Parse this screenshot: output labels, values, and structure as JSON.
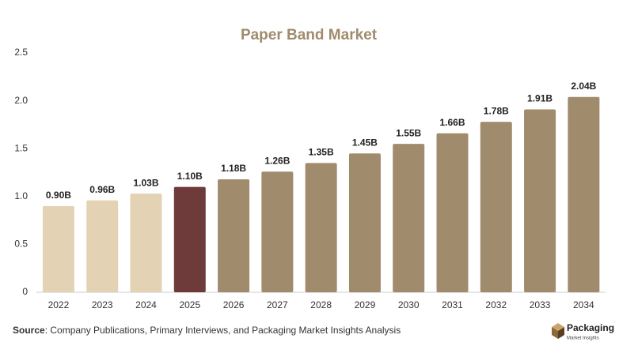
{
  "chart_data": {
    "type": "bar",
    "title": "Paper Band Market",
    "categories": [
      "2022",
      "2023",
      "2024",
      "2025",
      "2026",
      "2027",
      "2028",
      "2029",
      "2030",
      "2031",
      "2032",
      "2033",
      "2034"
    ],
    "values": [
      0.9,
      0.96,
      1.03,
      1.1,
      1.18,
      1.26,
      1.35,
      1.45,
      1.55,
      1.66,
      1.78,
      1.91,
      2.04
    ],
    "value_labels": [
      "0.90B",
      "0.96B",
      "1.03B",
      "1.10B",
      "1.18B",
      "1.26B",
      "1.35B",
      "1.45B",
      "1.55B",
      "1.66B",
      "1.78B",
      "1.91B",
      "2.04B"
    ],
    "colors": [
      "#e3d3b4",
      "#e3d3b4",
      "#e3d3b4",
      "#6e3a3a",
      "#a08b6c",
      "#a08b6c",
      "#a08b6c",
      "#a08b6c",
      "#a08b6c",
      "#a08b6c",
      "#a08b6c",
      "#a08b6c",
      "#a08b6c"
    ],
    "ylim": [
      0,
      2.5
    ],
    "yticks": [
      0,
      0.5,
      {
        "value": 1,
        "label": "1.0"
      },
      1.5,
      {
        "value": 2,
        "label": "2.0"
      },
      2.5
    ],
    "grid": false
  },
  "source_label": "Source",
  "source_text": ": Company Publications, Primary Interviews, and Packaging Market Insights Analysis",
  "logo": {
    "name": "Packaging",
    "tagline": "Market Insights"
  }
}
